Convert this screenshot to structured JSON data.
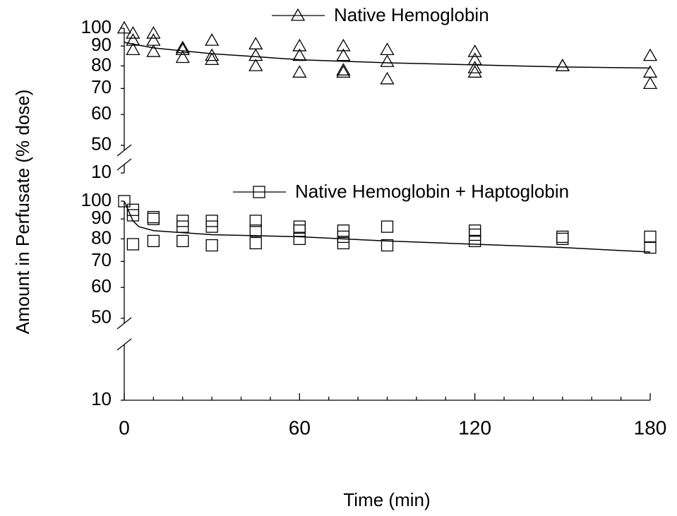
{
  "chart_data": [
    {
      "type": "scatter",
      "y_label": "Amount in Perfusate (% dose)",
      "log_y": true,
      "xlim": [
        0,
        180
      ],
      "ylim": [
        10,
        100
      ],
      "ybreak": [
        10,
        50
      ],
      "yticks": [
        10,
        50,
        60,
        70,
        80,
        90,
        100
      ],
      "color": "#000000",
      "series": [
        {
          "name": "Native Hemoglobin",
          "marker": "triangle",
          "x": [
            0,
            3,
            3,
            3,
            10,
            10,
            10,
            20,
            20,
            20,
            30,
            30,
            30,
            45,
            45,
            45,
            60,
            60,
            60,
            75,
            75,
            75,
            75,
            90,
            90,
            90,
            120,
            120,
            120,
            120,
            150,
            150,
            180,
            180,
            180
          ],
          "values": [
            100,
            97,
            93,
            88,
            97,
            93,
            87,
            89,
            88,
            84,
            93,
            85,
            83,
            91,
            85,
            80,
            90,
            85,
            77,
            90,
            85,
            78,
            77,
            88,
            82,
            74,
            87,
            83,
            79,
            77,
            80,
            80,
            85,
            77,
            72
          ],
          "fit_x": [
            0,
            10,
            30,
            45,
            60,
            90,
            120,
            150,
            180
          ],
          "fit_values": [
            92,
            89,
            86,
            84.5,
            83,
            81.5,
            80.5,
            79.5,
            79
          ]
        }
      ]
    },
    {
      "type": "scatter",
      "x_label": "Time (min)",
      "log_y": true,
      "xlim": [
        0,
        180
      ],
      "ylim": [
        10,
        100
      ],
      "ybreak": [
        10,
        50
      ],
      "xticks": [
        0,
        60,
        120,
        180
      ],
      "xminorticks": [
        10,
        20,
        30,
        40,
        50,
        70,
        80,
        90,
        100,
        110,
        130,
        140,
        150,
        160,
        170
      ],
      "yticks": [
        10,
        50,
        60,
        70,
        80,
        90,
        100
      ],
      "color": "#000000",
      "series": [
        {
          "name": "Native Hemoglobin + Haptoglobin",
          "marker": "square",
          "x": [
            0,
            3,
            3,
            3,
            10,
            10,
            10,
            20,
            20,
            20,
            30,
            30,
            30,
            45,
            45,
            45,
            60,
            60,
            60,
            75,
            75,
            75,
            90,
            90,
            120,
            120,
            120,
            150,
            150,
            180,
            180
          ],
          "values": [
            100,
            95,
            92,
            77.5,
            91,
            90,
            79,
            89,
            86,
            79,
            89,
            86,
            77,
            89,
            84,
            78,
            86,
            84,
            80,
            84,
            81,
            78,
            86,
            77,
            84,
            82,
            79,
            81,
            80,
            81,
            76
          ],
          "fit_x": [
            0,
            3,
            5,
            10,
            30,
            60,
            90,
            120,
            150,
            180
          ],
          "fit_values": [
            100,
            89,
            86,
            84,
            82,
            81,
            79,
            77.5,
            76,
            74
          ]
        }
      ]
    }
  ]
}
